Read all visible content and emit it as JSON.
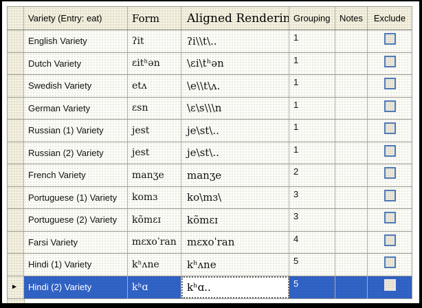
{
  "icons": {
    "current_row_arrow": "►"
  },
  "colors": {
    "selection_blue": "#3163c6",
    "header_beige": "#f3f0e1",
    "checkbox_border_blue": "#4e79b6"
  },
  "table": {
    "columns": [
      {
        "key": "variety",
        "label": "Variety (Entry: eat)"
      },
      {
        "key": "form",
        "label": "Form"
      },
      {
        "key": "aligned",
        "label": "Aligned Rendering"
      },
      {
        "key": "grouping",
        "label": "Grouping"
      },
      {
        "key": "notes",
        "label": "Notes"
      },
      {
        "key": "exclude",
        "label": "Exclude"
      }
    ],
    "rows": [
      {
        "variety": "English Variety",
        "form": "ʔit",
        "aligned": "ʔi\\\\t\\..",
        "grouping": "1",
        "notes": "",
        "excluded": false
      },
      {
        "variety": "Dutch Variety",
        "form": "ɛitʰən",
        "aligned": "\\ɛi\\tʰən",
        "grouping": "1",
        "notes": "",
        "excluded": false
      },
      {
        "variety": "Swedish Variety",
        "form": "etʌ",
        "aligned": "\\e\\\\t\\ʌ.",
        "grouping": "1",
        "notes": "",
        "excluded": false
      },
      {
        "variety": "German Variety",
        "form": "ɛsn",
        "aligned": "\\ɛ\\s\\\\\\n",
        "grouping": "1",
        "notes": "",
        "excluded": false
      },
      {
        "variety": "Russian (1) Variety",
        "form": "jest",
        "aligned": "je\\st\\..",
        "grouping": "1",
        "notes": "",
        "excluded": false
      },
      {
        "variety": "Russian (2) Variety",
        "form": "jest",
        "aligned": "je\\st\\..",
        "grouping": "1",
        "notes": "",
        "excluded": false
      },
      {
        "variety": "French Variety",
        "form": "manʒe",
        "aligned": "manʒe",
        "grouping": "2",
        "notes": "",
        "excluded": false
      },
      {
        "variety": "Portuguese (1) Variety",
        "form": "komɜ",
        "aligned": "ko\\mɜ\\",
        "grouping": "3",
        "notes": "",
        "excluded": false
      },
      {
        "variety": "Portuguese (2) Variety",
        "form": "kõmɛɪ",
        "aligned": "kõmɛɪ",
        "grouping": "3",
        "notes": "",
        "excluded": false
      },
      {
        "variety": "Farsi Variety",
        "form": "mɛxoˈran",
        "aligned": "mɛxoˈran",
        "grouping": "4",
        "notes": "",
        "excluded": false
      },
      {
        "variety": "Hindi (1) Variety",
        "form": "kʰʌne",
        "aligned": "kʰʌne",
        "grouping": "5",
        "notes": "",
        "excluded": false
      },
      {
        "variety": "Hindi (2) Variety",
        "form": "kʰɑ",
        "aligned": "kʰɑ..",
        "grouping": "5",
        "notes": "",
        "excluded": false
      }
    ],
    "selected_row_index": 11,
    "editing_cell": {
      "row": 11,
      "column": "aligned"
    }
  }
}
